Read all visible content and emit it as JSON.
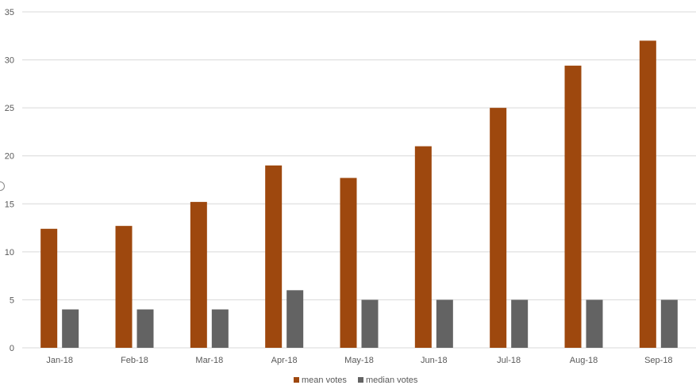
{
  "chart_data": {
    "type": "bar",
    "categories": [
      "Jan-18",
      "Feb-18",
      "Mar-18",
      "Apr-18",
      "May-18",
      "Jun-18",
      "Jul-18",
      "Aug-18",
      "Sep-18"
    ],
    "series": [
      {
        "name": "mean votes",
        "color": "#9E480E",
        "values": [
          12.4,
          12.7,
          15.2,
          19.0,
          17.7,
          21.0,
          25.0,
          29.4,
          32.0
        ]
      },
      {
        "name": "median votes",
        "color": "#636363",
        "values": [
          4,
          4,
          4,
          6,
          5,
          5,
          5,
          5,
          5
        ]
      }
    ],
    "y_ticks": [
      "0",
      "5",
      "10",
      "15",
      "20",
      "25",
      "30",
      "35"
    ],
    "ylim": [
      0,
      35
    ],
    "grid": true,
    "legend_position": "bottom",
    "gridline_color": "#d9d9d9",
    "axis_color": "#d9d9d9"
  }
}
